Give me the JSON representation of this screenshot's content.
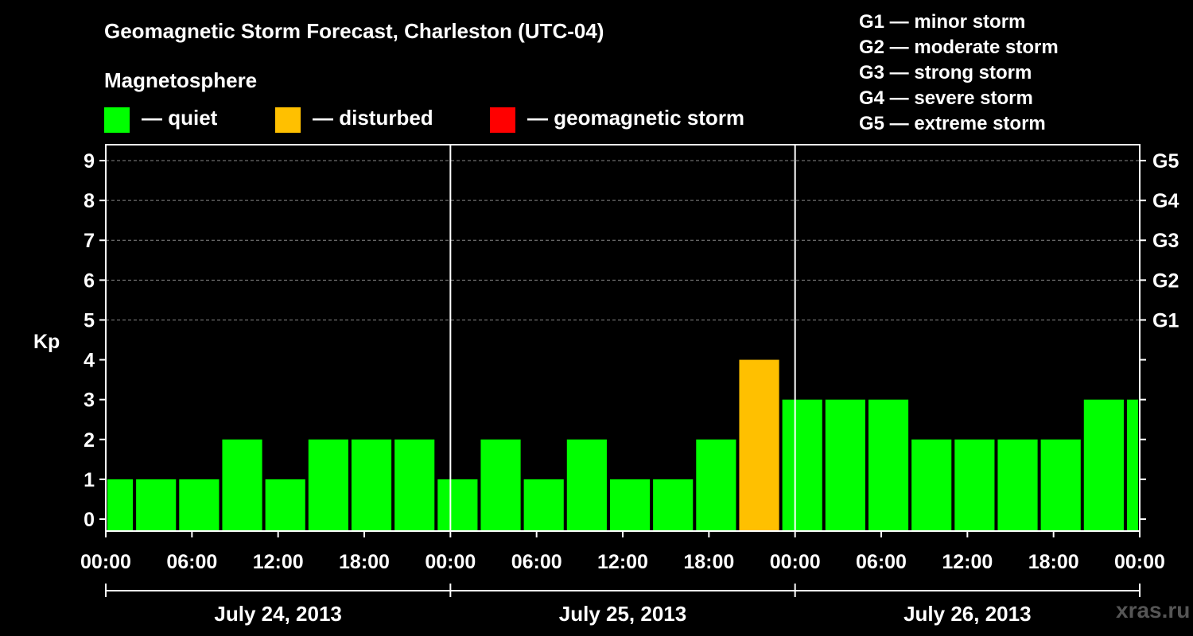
{
  "title": "Geomagnetic Storm Forecast, Charleston (UTC-04)",
  "magnetosphere_label": "Magnetosphere",
  "legend": [
    {
      "label": "— quiet",
      "color": "#00ff00"
    },
    {
      "label": "— disturbed",
      "color": "#ffc000"
    },
    {
      "label": "— geomagnetic storm",
      "color": "#ff0000"
    }
  ],
  "storm_scale": [
    "G1 — minor storm",
    "G2 — moderate storm",
    "G3 — strong storm",
    "G4 — severe storm",
    "G5 — extreme storm"
  ],
  "watermark": "xras.ru",
  "chart_data": {
    "type": "bar",
    "title": "Geomagnetic Storm Forecast, Charleston (UTC-04)",
    "ylabel": "Kp",
    "ylim": [
      -0.3,
      9.4
    ],
    "yticks": [
      "0",
      "1",
      "2",
      "3",
      "4",
      "5",
      "6",
      "7",
      "8",
      "9"
    ],
    "right_ticks": [
      {
        "kp": 5,
        "label": "G1"
      },
      {
        "kp": 6,
        "label": "G2"
      },
      {
        "kp": 7,
        "label": "G3"
      },
      {
        "kp": 8,
        "label": "G4"
      },
      {
        "kp": 9,
        "label": "G5"
      }
    ],
    "xlim_hours": [
      0,
      72
    ],
    "x_tick_labels": [
      "00:00",
      "06:00",
      "12:00",
      "18:00",
      "00:00",
      "06:00",
      "12:00",
      "18:00",
      "00:00",
      "06:00",
      "12:00",
      "18:00",
      "00:00"
    ],
    "days": [
      {
        "label": "July 24, 2013",
        "start_hour": 0,
        "end_hour": 24
      },
      {
        "label": "July 25, 2013",
        "start_hour": 24,
        "end_hour": 48
      },
      {
        "label": "July 26, 2013",
        "start_hour": 48,
        "end_hour": 72
      }
    ],
    "bars": [
      {
        "start": 0,
        "end": 2,
        "kp": 1,
        "status": "quiet"
      },
      {
        "start": 2,
        "end": 5,
        "kp": 1,
        "status": "quiet"
      },
      {
        "start": 5,
        "end": 8,
        "kp": 1,
        "status": "quiet"
      },
      {
        "start": 8,
        "end": 11,
        "kp": 2,
        "status": "quiet"
      },
      {
        "start": 11,
        "end": 14,
        "kp": 1,
        "status": "quiet"
      },
      {
        "start": 14,
        "end": 17,
        "kp": 2,
        "status": "quiet"
      },
      {
        "start": 17,
        "end": 20,
        "kp": 2,
        "status": "quiet"
      },
      {
        "start": 20,
        "end": 23,
        "kp": 2,
        "status": "quiet"
      },
      {
        "start": 23,
        "end": 26,
        "kp": 1,
        "status": "quiet"
      },
      {
        "start": 26,
        "end": 29,
        "kp": 2,
        "status": "quiet"
      },
      {
        "start": 29,
        "end": 32,
        "kp": 1,
        "status": "quiet"
      },
      {
        "start": 32,
        "end": 35,
        "kp": 2,
        "status": "quiet"
      },
      {
        "start": 35,
        "end": 38,
        "kp": 1,
        "status": "quiet"
      },
      {
        "start": 38,
        "end": 41,
        "kp": 1,
        "status": "quiet"
      },
      {
        "start": 41,
        "end": 44,
        "kp": 2,
        "status": "quiet"
      },
      {
        "start": 44,
        "end": 47,
        "kp": 4,
        "status": "disturbed"
      },
      {
        "start": 47,
        "end": 50,
        "kp": 3,
        "status": "quiet"
      },
      {
        "start": 50,
        "end": 53,
        "kp": 3,
        "status": "quiet"
      },
      {
        "start": 53,
        "end": 56,
        "kp": 3,
        "status": "quiet"
      },
      {
        "start": 56,
        "end": 59,
        "kp": 2,
        "status": "quiet"
      },
      {
        "start": 59,
        "end": 62,
        "kp": 2,
        "status": "quiet"
      },
      {
        "start": 62,
        "end": 65,
        "kp": 2,
        "status": "quiet"
      },
      {
        "start": 65,
        "end": 68,
        "kp": 2,
        "status": "quiet"
      },
      {
        "start": 68,
        "end": 71,
        "kp": 3,
        "status": "quiet"
      },
      {
        "start": 71,
        "end": 72,
        "kp": 3,
        "status": "quiet"
      }
    ],
    "status_colors": {
      "quiet": "#00ff00",
      "disturbed": "#ffc000",
      "storm": "#ff0000"
    }
  }
}
